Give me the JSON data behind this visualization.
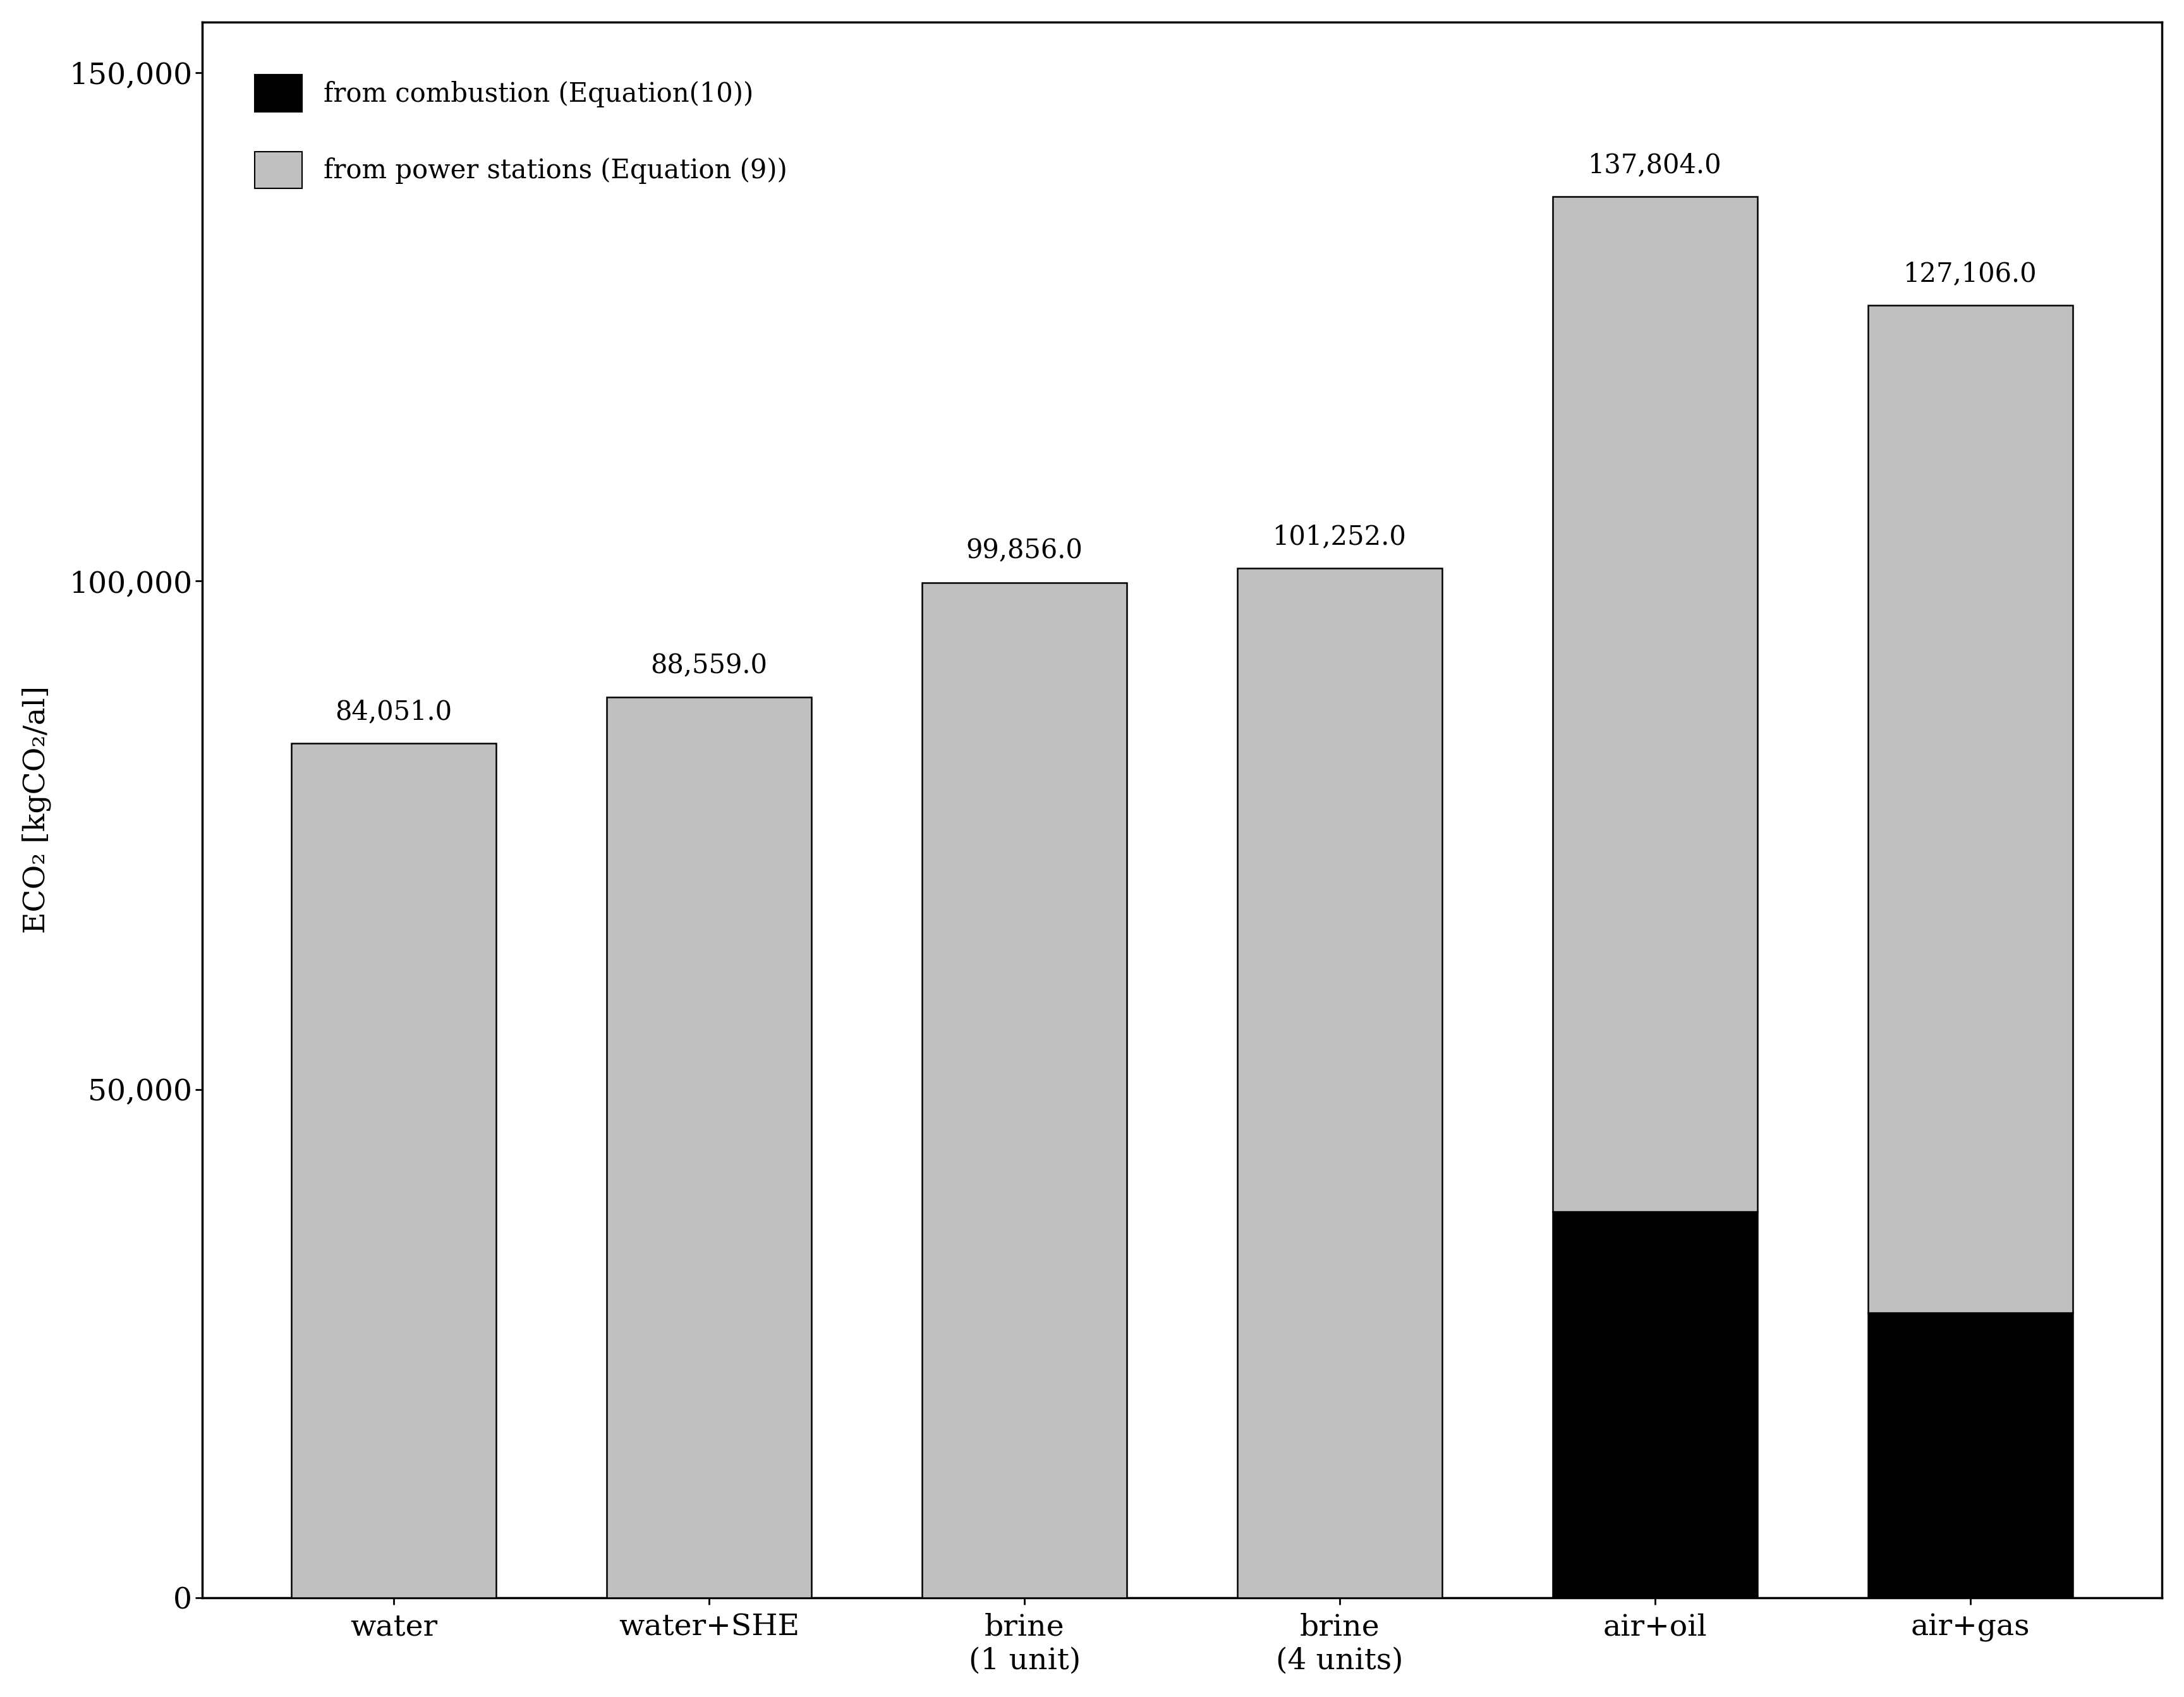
{
  "categories": [
    "water",
    "water+SHE",
    "brine\n(1 unit)",
    "brine\n(4 units)",
    "air+oil",
    "air+gas"
  ],
  "combustion_values": [
    0,
    0,
    0,
    0,
    38000,
    28000
  ],
  "power_station_values": [
    84051.0,
    88559.0,
    99856.0,
    101252.0,
    99804.0,
    99106.0
  ],
  "total_labels": [
    "84,051.0",
    "88,559.0",
    "99,856.0",
    "101,252.0",
    "137,804.0",
    "127,106.0"
  ],
  "total_values": [
    84051.0,
    88559.0,
    99856.0,
    101252.0,
    137804.0,
    127106.0
  ],
  "combustion_color": "#000000",
  "power_station_color": "#c0c0c0",
  "bar_edge_color": "#000000",
  "ylim": [
    0,
    155000
  ],
  "yticks": [
    0,
    50000,
    100000,
    150000
  ],
  "ytick_labels": [
    "0",
    "50,000",
    "100,000",
    "150,000"
  ],
  "ylabel": "ECO₂ [kgCO₂/al]",
  "legend_combustion": "from combustion (Equation(10))",
  "legend_power": "from power stations (Equation (9))",
  "background_color": "#ffffff",
  "bar_width": 0.65,
  "fontsize_ticks": 34,
  "fontsize_labels": 34,
  "fontsize_annot": 30,
  "fontsize_legend": 30,
  "spine_linewidth": 2.5
}
